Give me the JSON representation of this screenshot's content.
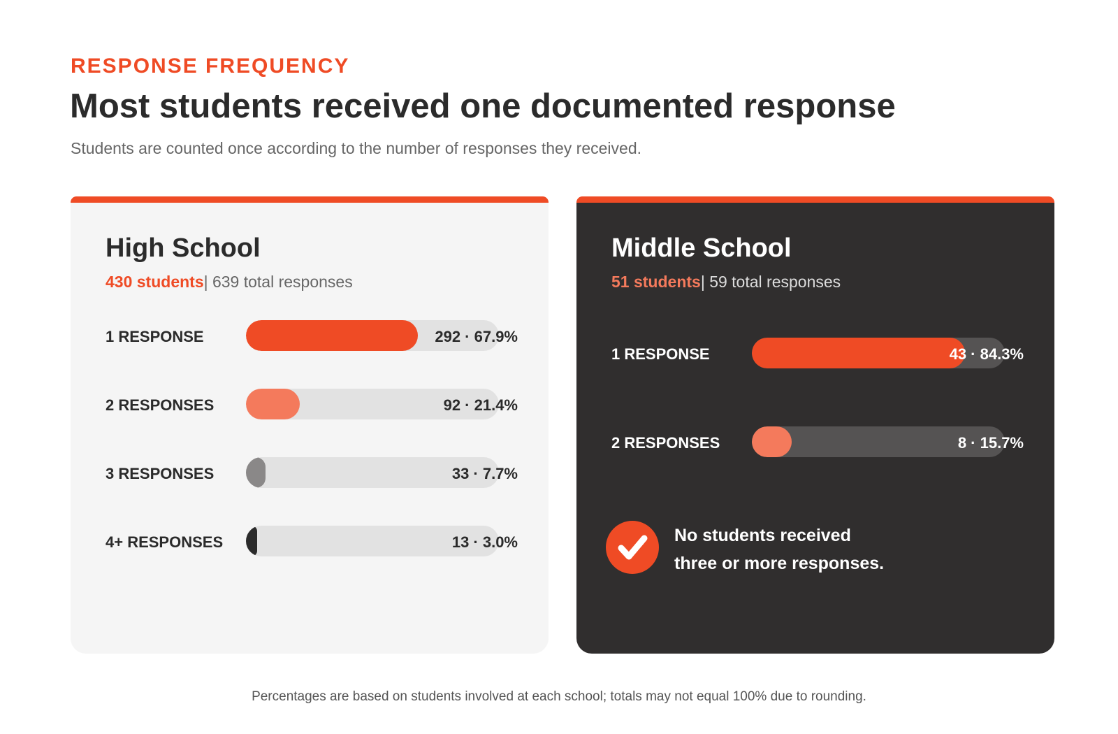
{
  "header": {
    "eyebrow": "RESPONSE FREQUENCY",
    "title": "Most students received one documented response",
    "subtitle": "Students are counted once according to the number of responses they received."
  },
  "colors": {
    "accent": "#ef4b25",
    "light_accent": "#f47a5c",
    "gray": "#8a8888",
    "dark": "#2b2b2b"
  },
  "chart_data": [
    {
      "type": "bar",
      "orientation": "horizontal",
      "title": "High School",
      "students_label": "430 students",
      "responses_label": "| 639 total responses",
      "categories": [
        "1 RESPONSE",
        "2 RESPONSES",
        "3 RESPONSES",
        "4+ RESPONSES"
      ],
      "counts": [
        292,
        92,
        33,
        13
      ],
      "percents": [
        67.9,
        21.4,
        7.7,
        3.0
      ],
      "value_labels": [
        "292 · 67.9%",
        "92 · 21.4%",
        "33 · 7.7%",
        "13 · 3.0%"
      ],
      "bar_colors": [
        "#ef4b25",
        "#f47a5c",
        "#8a8888",
        "#2b2b2b"
      ]
    },
    {
      "type": "bar",
      "orientation": "horizontal",
      "title": "Middle School",
      "students_label": "51 students",
      "responses_label": "| 59 total responses",
      "categories": [
        "1 RESPONSE",
        "2 RESPONSES"
      ],
      "counts": [
        43,
        8
      ],
      "percents": [
        84.3,
        15.7
      ],
      "value_labels": [
        "43 · 84.3%",
        "8 · 15.7%"
      ],
      "bar_colors": [
        "#ef4b25",
        "#f47a5c"
      ],
      "note_lines": [
        "No students received",
        "three or more responses."
      ],
      "note_icon": "check-icon"
    }
  ],
  "footnote": "Percentages are based on students involved at each school; totals may not equal 100% due to rounding."
}
